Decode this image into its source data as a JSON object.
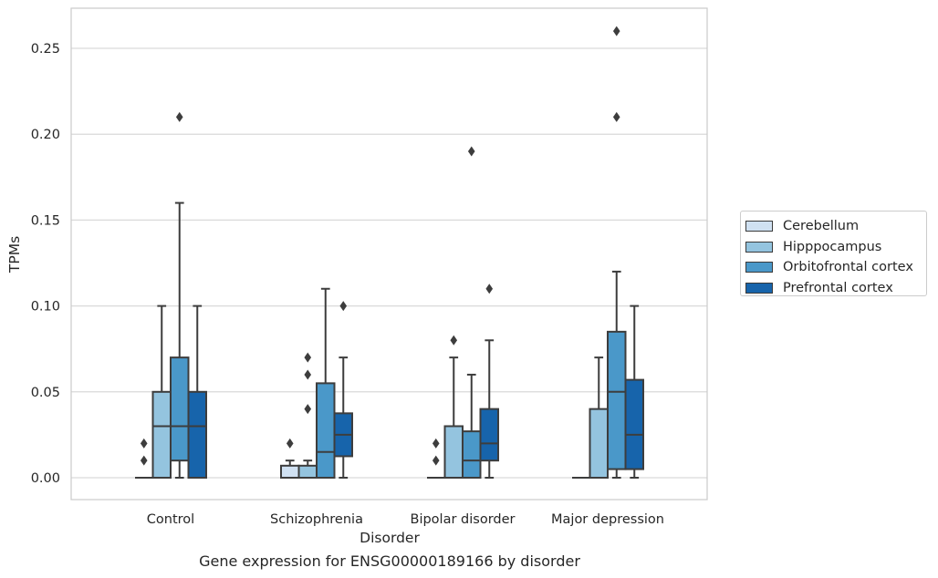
{
  "chart_data": {
    "type": "box",
    "xlabel": "Disorder",
    "ylabel": "TPMs",
    "ylim": [
      -0.012,
      0.274
    ],
    "yticks": [
      "0.00",
      "0.05",
      "0.10",
      "0.15",
      "0.20",
      "0.25"
    ],
    "categories": [
      "Control",
      "Schizophrenia",
      "Bipolar disorder",
      "Major depression"
    ],
    "grid": "horizontal",
    "legend_position": "right",
    "series": [
      {
        "name": "Cerebellum",
        "color": "#d0e1f2",
        "boxes": [
          {
            "q1": 0.0,
            "median": 0.0,
            "q3": 0.0,
            "whisker_low": 0.0,
            "whisker_high": 0.0,
            "outliers": [
              0.01,
              0.02
            ]
          },
          {
            "q1": 0.0,
            "median": 0.0,
            "q3": 0.007,
            "whisker_low": 0.0,
            "whisker_high": 0.01,
            "outliers": [
              0.02
            ]
          },
          {
            "q1": 0.0,
            "median": 0.0,
            "q3": 0.0,
            "whisker_low": 0.0,
            "whisker_high": 0.0,
            "outliers": [
              0.01,
              0.02
            ]
          },
          {
            "q1": 0.0,
            "median": 0.0,
            "q3": 0.0,
            "whisker_low": 0.0,
            "whisker_high": 0.0,
            "outliers": []
          }
        ]
      },
      {
        "name": "Hipppocampus",
        "color": "#94c4df",
        "boxes": [
          {
            "q1": 0.0,
            "median": 0.03,
            "q3": 0.05,
            "whisker_low": 0.0,
            "whisker_high": 0.1,
            "outliers": []
          },
          {
            "q1": 0.0,
            "median": 0.0,
            "q3": 0.007,
            "whisker_low": 0.0,
            "whisker_high": 0.01,
            "outliers": [
              0.04,
              0.06,
              0.07
            ]
          },
          {
            "q1": 0.0,
            "median": 0.0,
            "q3": 0.03,
            "whisker_low": 0.0,
            "whisker_high": 0.07,
            "outliers": [
              0.08
            ]
          },
          {
            "q1": 0.0,
            "median": 0.0,
            "q3": 0.04,
            "whisker_low": 0.0,
            "whisker_high": 0.07,
            "outliers": []
          }
        ]
      },
      {
        "name": "Orbitofrontal cortex",
        "color": "#4a98c9",
        "boxes": [
          {
            "q1": 0.01,
            "median": 0.03,
            "q3": 0.07,
            "whisker_low": 0.0,
            "whisker_high": 0.16,
            "outliers": [
              0.21
            ]
          },
          {
            "q1": 0.0,
            "median": 0.015,
            "q3": 0.055,
            "whisker_low": 0.0,
            "whisker_high": 0.11,
            "outliers": []
          },
          {
            "q1": 0.0,
            "median": 0.01,
            "q3": 0.027,
            "whisker_low": 0.0,
            "whisker_high": 0.06,
            "outliers": [
              0.19
            ]
          },
          {
            "q1": 0.005,
            "median": 0.05,
            "q3": 0.085,
            "whisker_low": 0.0,
            "whisker_high": 0.12,
            "outliers": [
              0.21,
              0.26
            ]
          }
        ]
      },
      {
        "name": "Prefrontal cortex",
        "color": "#1764ab",
        "boxes": [
          {
            "q1": 0.0,
            "median": 0.03,
            "q3": 0.05,
            "whisker_low": 0.0,
            "whisker_high": 0.1,
            "outliers": []
          },
          {
            "q1": 0.0125,
            "median": 0.025,
            "q3": 0.0375,
            "whisker_low": 0.0,
            "whisker_high": 0.07,
            "outliers": [
              0.1
            ]
          },
          {
            "q1": 0.01,
            "median": 0.02,
            "q3": 0.04,
            "whisker_low": 0.0,
            "whisker_high": 0.08,
            "outliers": [
              0.11
            ]
          },
          {
            "q1": 0.005,
            "median": 0.025,
            "q3": 0.057,
            "whisker_low": 0.0,
            "whisker_high": 0.1,
            "outliers": []
          }
        ]
      }
    ]
  },
  "caption": "Gene expression for ENSG00000189166 by disorder",
  "colors": {
    "grid": "#d9d9d9",
    "axes_edge": "#cccccc",
    "box_edge": "#3d3d3d"
  }
}
